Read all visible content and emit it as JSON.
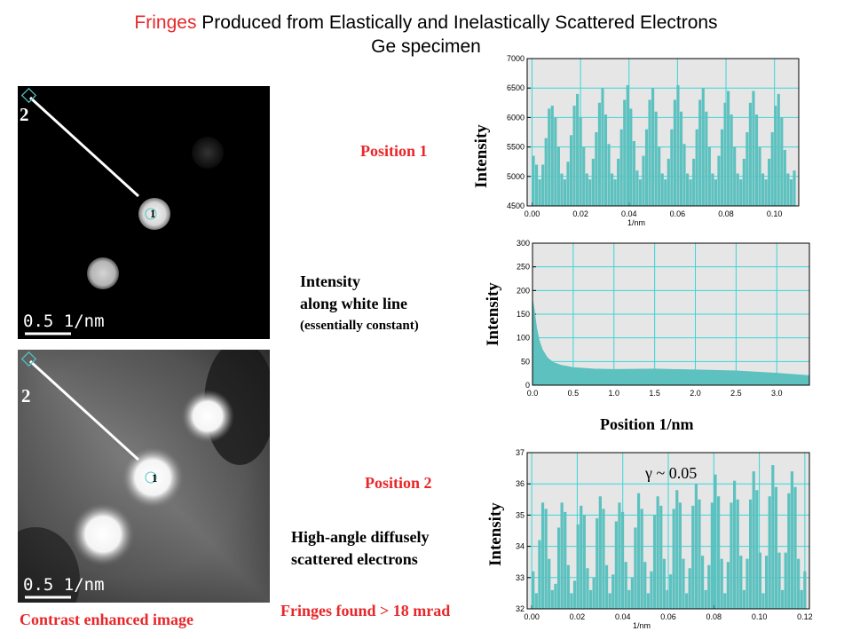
{
  "title": {
    "highlight": "Fringes",
    "rest": " Produced from Elastically and Inelastically Scattered Electrons",
    "line2": "Ge specimen"
  },
  "panels": {
    "top": {
      "label_2": "2",
      "label_1": "1",
      "scale": "0.5 1/nm"
    },
    "bottom": {
      "label_2": "2",
      "label_1": "1",
      "scale": "0.5 1/nm",
      "caption": "Contrast enhanced image"
    }
  },
  "labels": {
    "position1": "Position 1",
    "position2": "Position 2",
    "intensity_line1": "Intensity",
    "intensity_line2": "along white line",
    "intensity_line3": "(essentially constant)",
    "high_angle_line1": "High-angle diffusely",
    "high_angle_line2": "scattered electrons",
    "fringes_found": "Fringes found > 18 mrad",
    "position_axis": "Position 1/nm",
    "gamma": "γ ~ 0.05"
  },
  "colors": {
    "bar": "#5cc1bf",
    "plot_bg": "#e6e6e6",
    "grid": "#39d6d6",
    "accent": "#e8272a"
  },
  "chart_data": [
    {
      "type": "bar",
      "ylabel": "Intensity",
      "xlabel": "1/nm",
      "xlim": [
        -0.002,
        0.11
      ],
      "ylim": [
        4500,
        7000
      ],
      "xticks": [
        "0.00",
        "0.02",
        "0.04",
        "0.06",
        "0.08",
        "0.10"
      ],
      "yticks": [
        "4500",
        "5000",
        "5500",
        "6000",
        "6500",
        "7000"
      ],
      "pattern": {
        "count": 84,
        "period": 0.0117,
        "min": 4950,
        "peak": 6450,
        "x0": 0.0,
        "dx": 0.00129
      },
      "values": [
        5350,
        5200,
        4950,
        5200,
        5650,
        6150,
        6200,
        6000,
        5500,
        5050,
        4950,
        5250,
        5700,
        6200,
        6400,
        6000,
        5500,
        5050,
        4950,
        5300,
        5750,
        6250,
        6500,
        6050,
        5550,
        5050,
        4950,
        5300,
        5800,
        6300,
        6550,
        6150,
        5600,
        5100,
        4950,
        5350,
        5800,
        6300,
        6500,
        6100,
        5500,
        5050,
        4950,
        5300,
        5800,
        6300,
        6550,
        6100,
        5550,
        5050,
        4950,
        5300,
        5800,
        6300,
        6500,
        6100,
        5500,
        5050,
        4950,
        5350,
        5800,
        6250,
        6450,
        6050,
        5500,
        5050,
        4950,
        5300,
        5750,
        6250,
        6450,
        6050,
        5500,
        5050,
        4950,
        5300,
        5750,
        6200,
        6400,
        6000,
        5450,
        5050,
        4950,
        5100
      ]
    },
    {
      "type": "area",
      "ylabel": "Intensity",
      "xlabel": "Position 1/nm",
      "xlim": [
        0,
        3.4
      ],
      "ylim": [
        0,
        300
      ],
      "xticks": [
        "0.0",
        "0.5",
        "1.0",
        "1.5",
        "2.0",
        "2.5",
        "3.0"
      ],
      "yticks": [
        "0",
        "50",
        "100",
        "150",
        "200",
        "250",
        "300"
      ],
      "x": [
        0.0,
        0.02,
        0.05,
        0.08,
        0.12,
        0.18,
        0.25,
        0.35,
        0.5,
        0.75,
        1.0,
        1.5,
        2.0,
        2.5,
        3.0,
        3.4
      ],
      "values": [
        180,
        160,
        120,
        95,
        75,
        58,
        48,
        42,
        37,
        34,
        33,
        34,
        32,
        30,
        25,
        20
      ]
    },
    {
      "type": "bar",
      "ylabel": "Intensity",
      "xlabel": "1/nm",
      "xlim": [
        -0.002,
        0.122
      ],
      "ylim": [
        32,
        37
      ],
      "xticks": [
        "0.00",
        "0.02",
        "0.04",
        "0.06",
        "0.08",
        "0.10",
        "0.12"
      ],
      "yticks": [
        "32",
        "33",
        "34",
        "35",
        "36",
        "37"
      ],
      "annotation": "γ ~ 0.05",
      "values": [
        33.2,
        32.5,
        34.2,
        35.4,
        35.2,
        33.6,
        32.6,
        32.8,
        34.6,
        35.4,
        35.1,
        33.4,
        32.5,
        32.9,
        34.7,
        35.3,
        35.0,
        33.3,
        32.6,
        33.0,
        34.9,
        35.6,
        35.2,
        33.4,
        32.5,
        33.1,
        34.8,
        35.4,
        35.1,
        33.5,
        32.6,
        33.0,
        34.6,
        35.7,
        35.2,
        33.5,
        32.5,
        33.2,
        35.0,
        35.6,
        35.3,
        33.6,
        32.6,
        33.1,
        35.2,
        35.8,
        35.4,
        33.6,
        32.5,
        33.3,
        35.3,
        36.0,
        35.5,
        33.7,
        32.6,
        33.4,
        35.4,
        36.3,
        35.6,
        33.6,
        32.5,
        33.5,
        35.4,
        36.1,
        35.5,
        33.7,
        32.6,
        33.6,
        35.5,
        36.4,
        35.8,
        33.8,
        32.5,
        33.7,
        35.6,
        36.6,
        35.9,
        33.8,
        32.6,
        33.8,
        35.7,
        36.4,
        35.9,
        33.6,
        32.6,
        33.2
      ]
    }
  ]
}
